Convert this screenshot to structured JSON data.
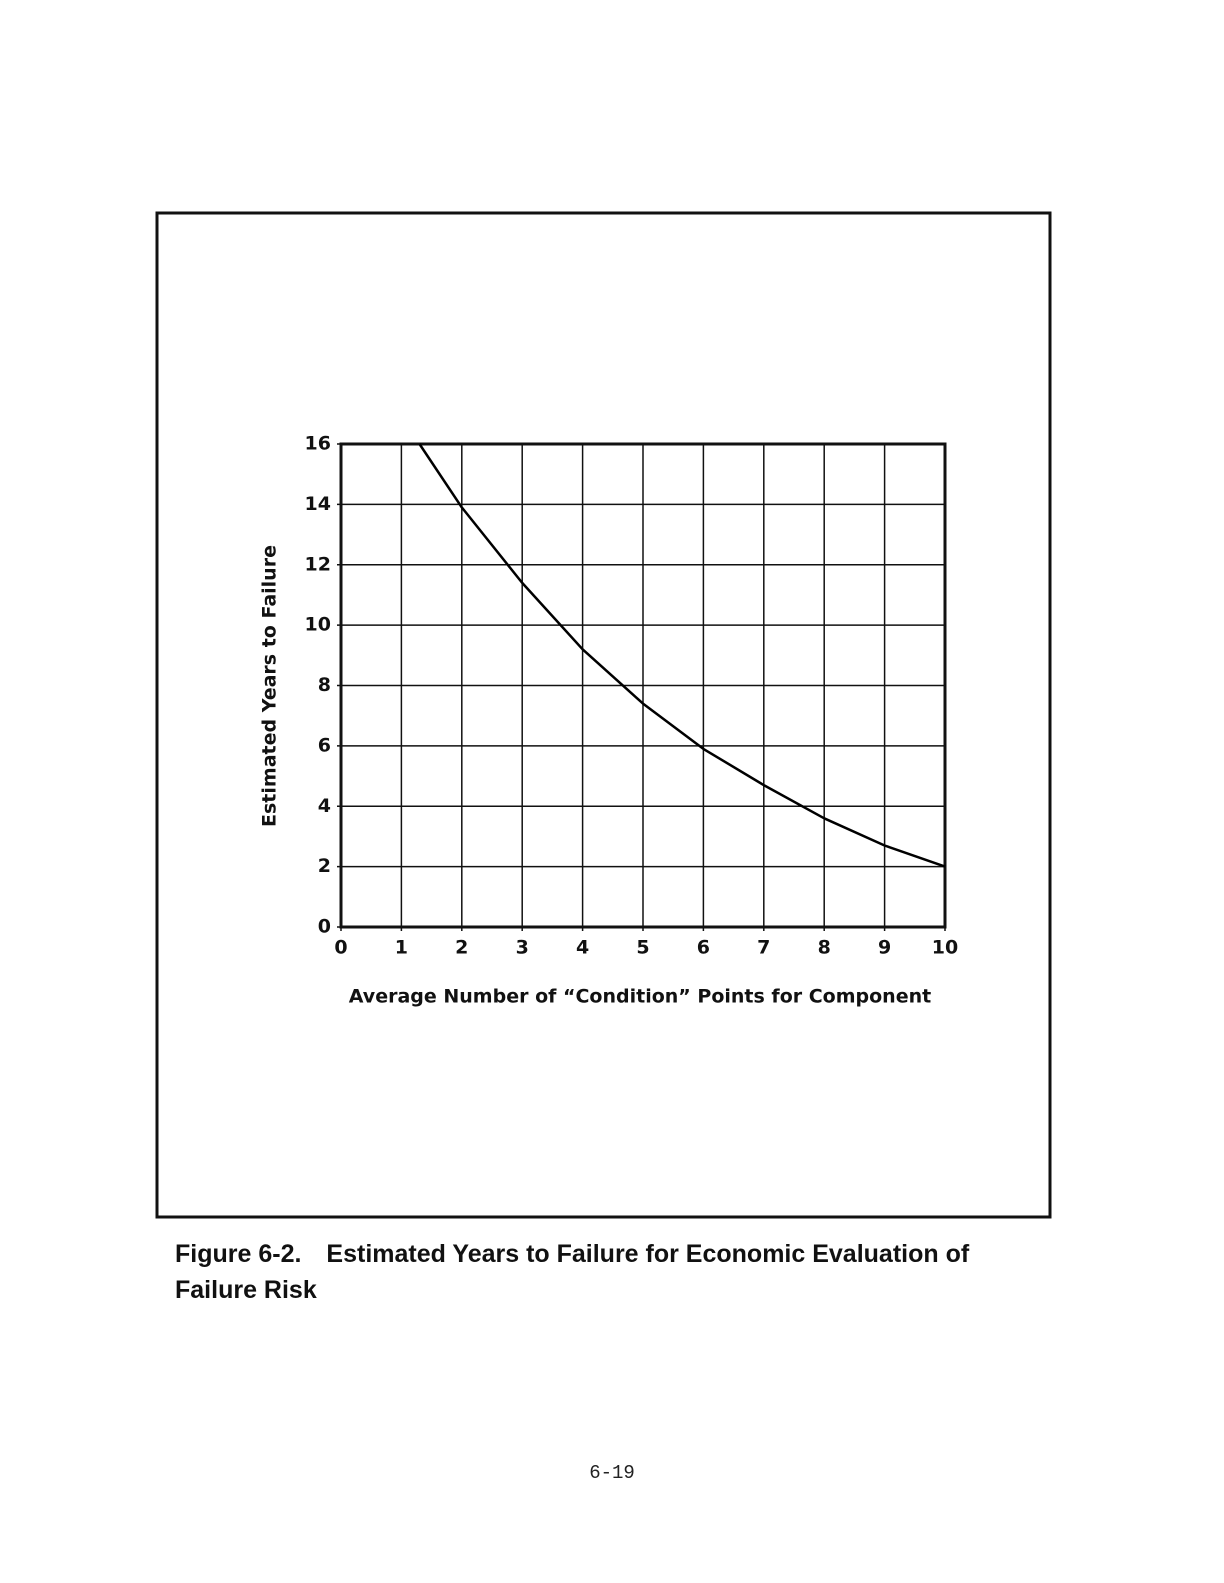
{
  "chart_data": {
    "type": "line",
    "xlabel": "Average Number of “Condition” Points for Component",
    "ylabel": "Estimated Years to Failure",
    "x": [
      1.3,
      2,
      3,
      4,
      5,
      6,
      7,
      8,
      9,
      10
    ],
    "values": [
      16,
      13.9,
      11.4,
      9.2,
      7.4,
      5.9,
      4.7,
      3.6,
      2.7,
      2.0
    ],
    "color": "#000000",
    "xlim": [
      0,
      10
    ],
    "xticks": [
      0,
      1,
      2,
      3,
      4,
      5,
      6,
      7,
      8,
      9,
      10
    ],
    "ylim": [
      0,
      16
    ],
    "yticks": [
      0,
      2,
      4,
      6,
      8,
      10,
      12,
      14,
      16
    ],
    "grid": true
  },
  "caption": "Figure 6-2. Estimated Years to Failure for Economic Evaluation of Failure Risk",
  "page_number": "6-19"
}
